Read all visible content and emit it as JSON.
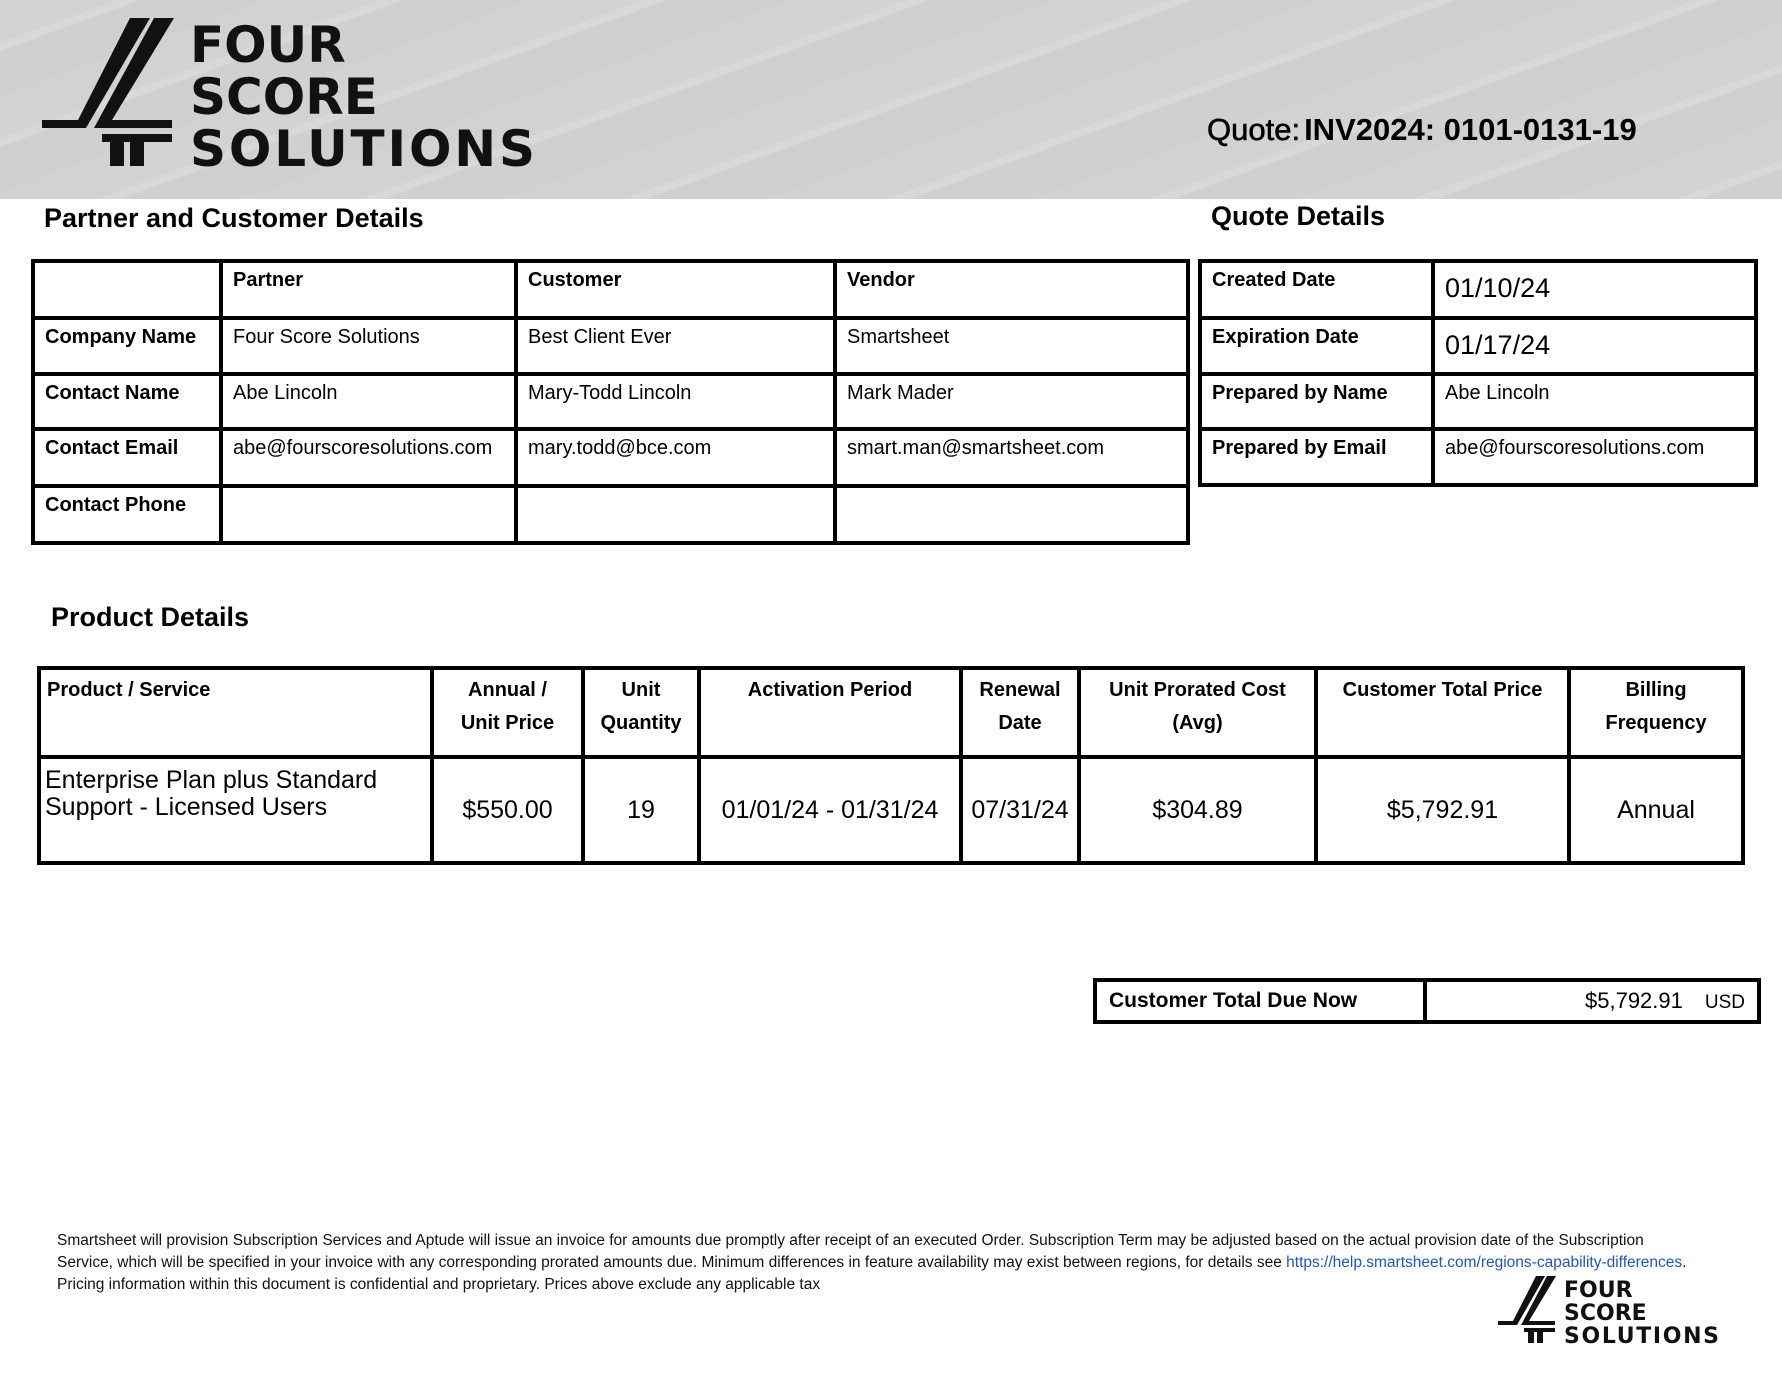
{
  "logo": {
    "lines": [
      "FOUR",
      "SCORE",
      "SOLUTIONS"
    ]
  },
  "quote": {
    "label": "Quote:",
    "number": "INV2024: 0101-0131-19"
  },
  "partner_section": {
    "title": "Partner and Customer Details",
    "columns": [
      "",
      "Partner",
      "Customer",
      "Vendor"
    ],
    "rows": [
      {
        "label": "Company Name",
        "values": [
          "Four Score Solutions",
          "Best Client Ever",
          "Smartsheet"
        ]
      },
      {
        "label": "Contact Name",
        "values": [
          "Abe Lincoln",
          "Mary-Todd Lincoln",
          "Mark Mader"
        ]
      },
      {
        "label": "Contact Email",
        "values": [
          "abe@fourscoresolutions.com",
          "mary.todd@bce.com",
          "smart.man@smartsheet.com"
        ]
      },
      {
        "label": "Contact Phone",
        "values": [
          "",
          "",
          ""
        ]
      }
    ]
  },
  "quote_details": {
    "title": "Quote Details",
    "rows": [
      {
        "label": "Created Date",
        "value": "01/10/24"
      },
      {
        "label": "Expiration Date",
        "value": "01/17/24"
      },
      {
        "label": "Prepared by Name",
        "value": "Abe Lincoln"
      },
      {
        "label": "Prepared by Email",
        "value": "abe@fourscoresolutions.com"
      }
    ]
  },
  "product_details": {
    "title": "Product Details",
    "columns": [
      {
        "l1": "Product / Service",
        "l2": ""
      },
      {
        "l1": "Annual /",
        "l2": "Unit Price"
      },
      {
        "l1": "Unit",
        "l2": "Quantity"
      },
      {
        "l1": "Activation Period",
        "l2": ""
      },
      {
        "l1": "Renewal",
        "l2": "Date"
      },
      {
        "l1": "Unit Prorated Cost",
        "l2": "(Avg)"
      },
      {
        "l1": "Customer Total Price",
        "l2": ""
      },
      {
        "l1": "Billing",
        "l2": "Frequency"
      }
    ],
    "rows": [
      [
        "Enterprise Plan plus Standard Support - Licensed Users",
        "$550.00",
        "19",
        "01/01/24 - 01/31/24",
        "07/31/24",
        "$304.89",
        "$5,792.91",
        "Annual"
      ]
    ]
  },
  "total": {
    "label": "Customer Total Due Now",
    "amount": "$5,792.91",
    "currency": "USD"
  },
  "footer": {
    "text1": "Smartsheet will provision Subscription Services and Aptude will issue an invoice for amounts due promptly after receipt of an executed Order. Subscription Term may be adjusted based on the actual provision date of the Subscription Service, which will be specified in your invoice with any corresponding prorated amounts due. Minimum differences in feature availability may exist between regions, for details see ",
    "link": "https://help.smartsheet.com/regions-capability-differences",
    "text2": ". Pricing information within this document is confidential and proprietary. Prices above exclude any applicable tax"
  }
}
